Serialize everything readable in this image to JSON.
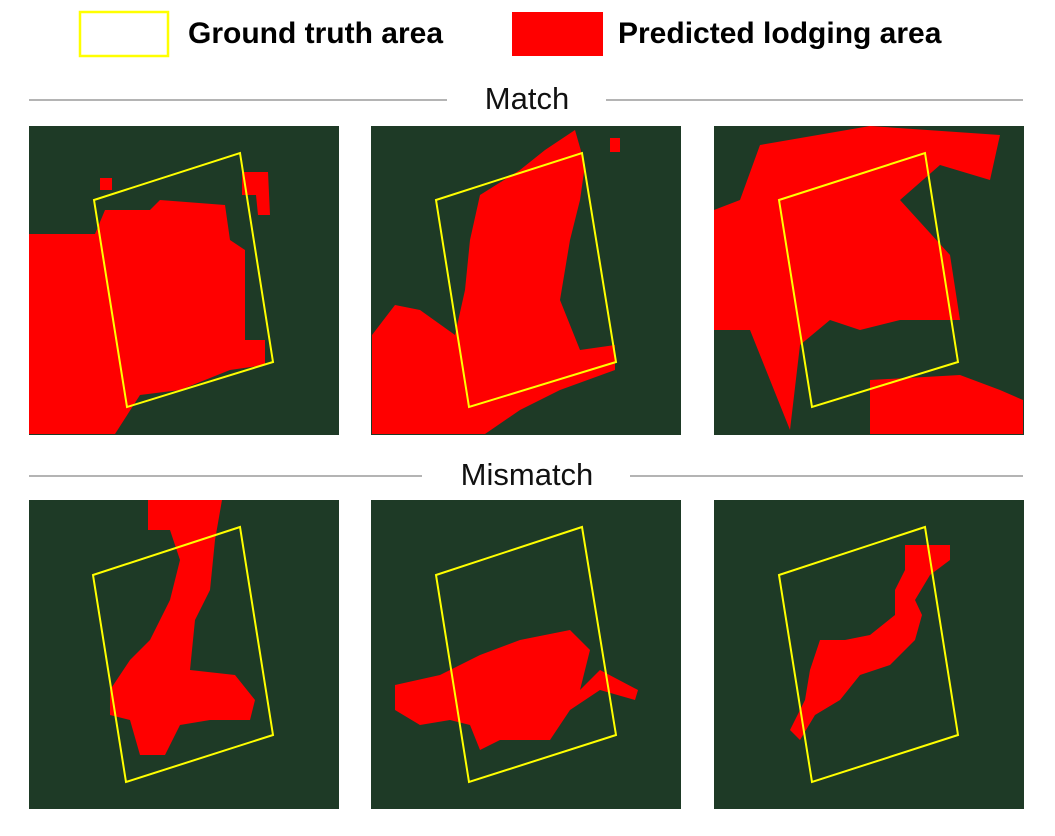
{
  "legend": {
    "items": [
      {
        "label": "Ground truth area"
      },
      {
        "label": "Predicted lodging area"
      }
    ]
  },
  "sections": [
    {
      "title": "Match"
    },
    {
      "title": "Mismatch"
    }
  ]
}
